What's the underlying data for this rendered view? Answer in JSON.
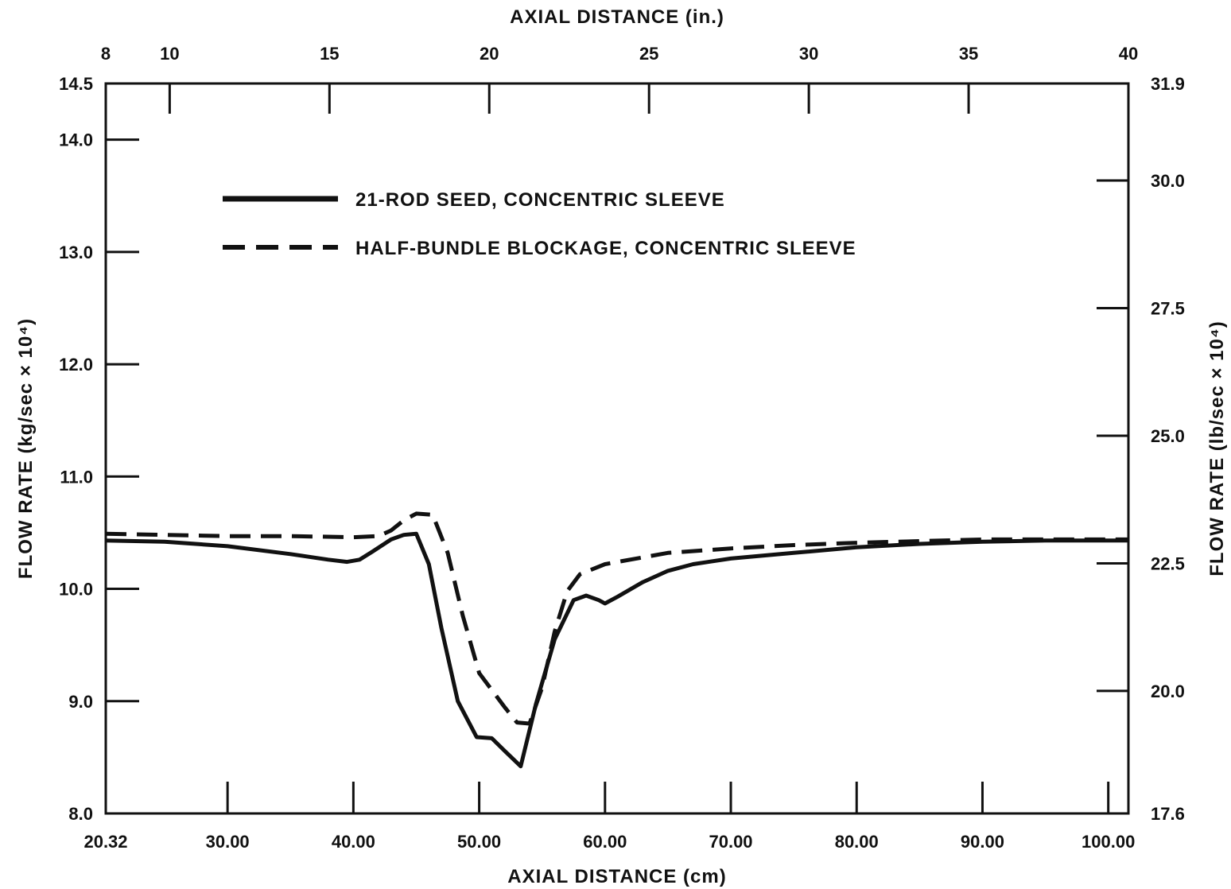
{
  "chart_data": {
    "type": "line",
    "title": "",
    "xlabel_bottom": "AXIAL DISTANCE (cm)",
    "xlabel_top": "AXIAL DISTANCE (in.)",
    "ylabel_left": "FLOW RATE (kg/sec × 10⁴)",
    "ylabel_right": "FLOW RATE (lb/sec × 10⁴)",
    "xlim": [
      20.32,
      101.6
    ],
    "ylim": [
      8.0,
      14.5
    ],
    "grid": false,
    "legend_position": "upper-left",
    "x_ticks_bottom": [
      {
        "value": 20.32,
        "label": "20.32"
      },
      {
        "value": 30,
        "label": "30.00"
      },
      {
        "value": 40,
        "label": "40.00"
      },
      {
        "value": 50,
        "label": "50.00"
      },
      {
        "value": 60,
        "label": "60.00"
      },
      {
        "value": 70,
        "label": "70.00"
      },
      {
        "value": 80,
        "label": "80.00"
      },
      {
        "value": 90,
        "label": "90.00"
      },
      {
        "value": 100,
        "label": "100.00"
      }
    ],
    "x_ticks_top": [
      {
        "value": 8,
        "label": "8"
      },
      {
        "value": 10,
        "label": "10"
      },
      {
        "value": 15,
        "label": "15"
      },
      {
        "value": 20,
        "label": "20"
      },
      {
        "value": 25,
        "label": "25"
      },
      {
        "value": 30,
        "label": "30"
      },
      {
        "value": 35,
        "label": "35"
      },
      {
        "value": 40,
        "label": "40"
      }
    ],
    "y_ticks_left": [
      {
        "value": 8.0,
        "label": "8.0"
      },
      {
        "value": 9.0,
        "label": "9.0"
      },
      {
        "value": 10.0,
        "label": "10.0"
      },
      {
        "value": 11.0,
        "label": "11.0"
      },
      {
        "value": 12.0,
        "label": "12.0"
      },
      {
        "value": 13.0,
        "label": "13.0"
      },
      {
        "value": 14.0,
        "label": "14.0"
      },
      {
        "value": 14.5,
        "label": "14.5"
      }
    ],
    "y_ticks_right": [
      {
        "value": 17.6,
        "label": "17.6"
      },
      {
        "value": 20.0,
        "label": "20.0"
      },
      {
        "value": 22.5,
        "label": "22.5"
      },
      {
        "value": 25.0,
        "label": "25.0"
      },
      {
        "value": 27.5,
        "label": "27.5"
      },
      {
        "value": 30.0,
        "label": "30.0"
      },
      {
        "value": 31.9,
        "label": "31.9"
      }
    ],
    "series": [
      {
        "name": "21-ROD SEED, CONCENTRIC SLEEVE",
        "style": "solid",
        "x": [
          20.32,
          25,
          30,
          35,
          38,
          39.5,
          40.5,
          41.5,
          43,
          44,
          45,
          46,
          47,
          48.3,
          49.8,
          51,
          52,
          53.3,
          54.5,
          56,
          57.5,
          58.5,
          59.5,
          60,
          61,
          63,
          65,
          67,
          70,
          75,
          80,
          85,
          90,
          95,
          101.6
        ],
        "y": [
          10.43,
          10.42,
          10.38,
          10.31,
          10.26,
          10.24,
          10.26,
          10.33,
          10.44,
          10.48,
          10.49,
          10.22,
          9.65,
          9.0,
          8.68,
          8.67,
          8.56,
          8.42,
          8.97,
          9.55,
          9.9,
          9.94,
          9.9,
          9.87,
          9.93,
          10.06,
          10.16,
          10.22,
          10.27,
          10.32,
          10.37,
          10.4,
          10.42,
          10.43,
          10.43
        ]
      },
      {
        "name": "HALF-BUNDLE BLOCKAGE, CONCENTRIC SLEEVE",
        "style": "dashed",
        "x": [
          20.32,
          30,
          35,
          40,
          42,
          43,
          44,
          45,
          46.3,
          47.5,
          48.7,
          50,
          51,
          52,
          53,
          54,
          55,
          56,
          57,
          58,
          60,
          65,
          70,
          75,
          80,
          90,
          101.6
        ],
        "y": [
          10.49,
          10.47,
          10.47,
          10.46,
          10.47,
          10.52,
          10.61,
          10.67,
          10.66,
          10.32,
          9.76,
          9.25,
          9.1,
          8.95,
          8.81,
          8.8,
          9.12,
          9.62,
          9.98,
          10.13,
          10.22,
          10.32,
          10.36,
          10.39,
          10.41,
          10.44,
          10.44
        ]
      }
    ]
  }
}
